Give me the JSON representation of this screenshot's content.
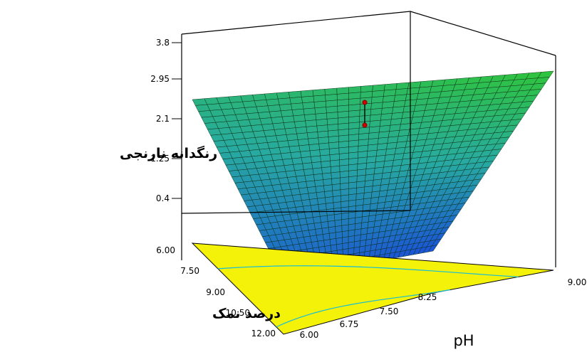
{
  "chart_data": {
    "type": "surface3d",
    "title": "",
    "zlabel": "رنگدانه نارنجی",
    "ylabel": "درصد نمک",
    "xlabel": "pH",
    "z_ticks": [
      "0.4",
      "1.25",
      "2.1",
      "2.95",
      "3.8"
    ],
    "salt_ticks": [
      "6.00",
      "7.50",
      "9.00",
      "10.50",
      "12.00"
    ],
    "ph_ticks": [
      "6.00",
      "6.75",
      "7.50",
      "8.25",
      "9.00"
    ],
    "zlim": [
      0.4,
      3.8
    ],
    "salt_range": [
      6.0,
      12.0
    ],
    "ph_range": [
      6.0,
      9.0
    ],
    "surface_corners": [
      {
        "ph": 6.0,
        "salt": 6.0,
        "z": 2.6
      },
      {
        "ph": 9.0,
        "salt": 6.0,
        "z": 3.8
      },
      {
        "ph": 9.0,
        "salt": 12.0,
        "z": 0.4
      },
      {
        "ph": 6.0,
        "salt": 12.0,
        "z": 0.7
      }
    ],
    "design_point": {
      "ph": 7.5,
      "salt": 9.0,
      "z_observed": 2.6,
      "z_predicted": 1.7
    },
    "colors": {
      "surface_high": "#2fc43a",
      "surface_low": "#1a52d8",
      "mesh": "#0a2a10",
      "contour_fill": "#f5f20a",
      "contour_line": "#16bcd8",
      "point": "#cc0000"
    }
  }
}
